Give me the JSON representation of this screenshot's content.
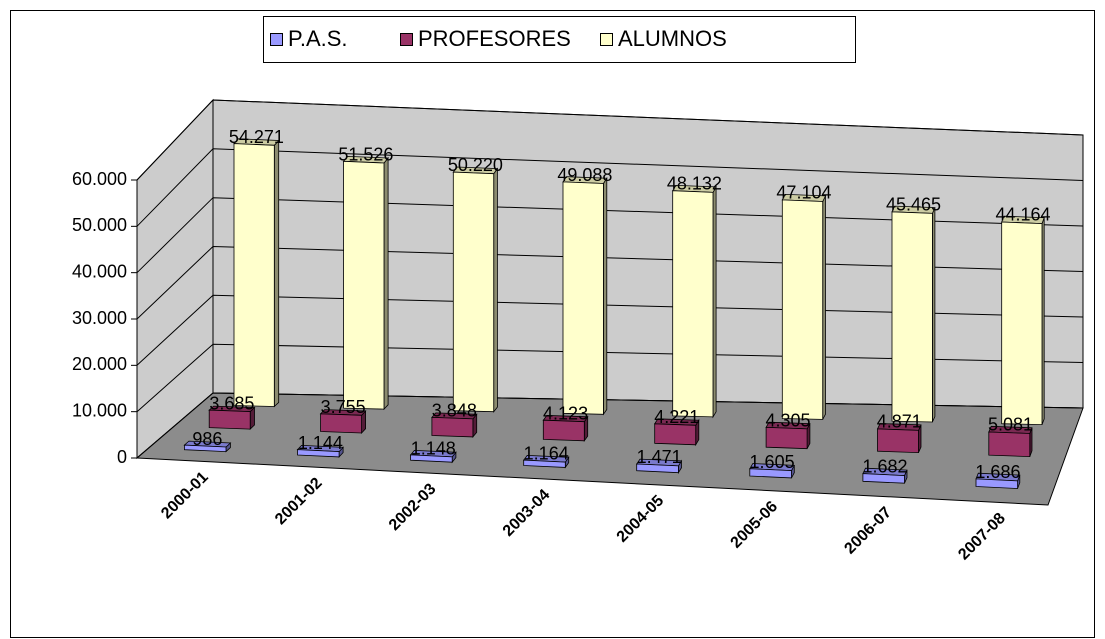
{
  "chart_data": {
    "type": "bar3d",
    "categories": [
      "2000-01",
      "2001-02",
      "2002-03",
      "2003-04",
      "2004-05",
      "2005-06",
      "2006-07",
      "2007-08"
    ],
    "series": [
      {
        "name": "P.A.S.",
        "color": "#9999ff",
        "values": [
          986,
          1144,
          1148,
          1164,
          1471,
          1605,
          1682,
          1686
        ],
        "value_labels": [
          "986",
          "1.144",
          "1.148",
          "1.164",
          "1.471",
          "1.605",
          "1.682",
          "1.686"
        ]
      },
      {
        "name": "PROFESORES",
        "color": "#993366",
        "values": [
          3685,
          3755,
          3848,
          4123,
          4221,
          4305,
          4871,
          5081
        ],
        "value_labels": [
          "3.685",
          "3.755",
          "3.848",
          "4.123",
          "4.221",
          "4.305",
          "4.871",
          "5.081"
        ]
      },
      {
        "name": "ALUMNOS",
        "color": "#ffffcc",
        "values": [
          54271,
          51526,
          50220,
          49088,
          48132,
          47104,
          45465,
          44164
        ],
        "value_labels": [
          "54.271",
          "51.526",
          "50.220",
          "49.088",
          "48.132",
          "47.104",
          "45.465",
          "44.164"
        ]
      }
    ],
    "ylim": [
      0,
      60000
    ],
    "yticks": [
      0,
      {
        "value": 10000,
        "label": "10.000"
      },
      {
        "value": 20000,
        "label": "20.000"
      },
      {
        "value": 30000,
        "label": "30.000"
      },
      {
        "value": 40000,
        "label": "40.000"
      },
      {
        "value": 50000,
        "label": "50.000"
      },
      {
        "value": 60000,
        "label": "60.000"
      }
    ],
    "grid": true,
    "legend": "top"
  }
}
